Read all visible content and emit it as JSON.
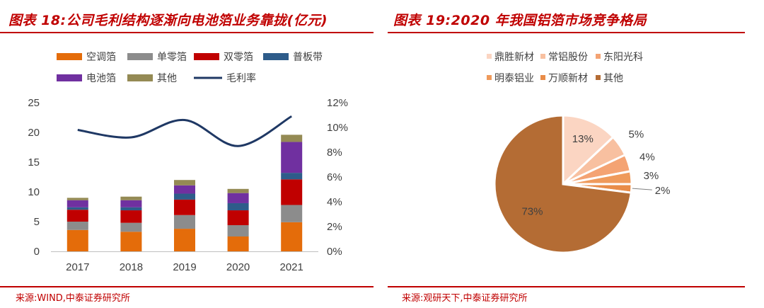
{
  "left": {
    "title": "图表 18:公司毛利结构逐渐向电池箔业务靠拢(亿元)",
    "source": "来源:WIND,中泰证券研究所"
  },
  "right": {
    "title": "图表 19:2020 年我国铝箔市场竞争格局",
    "source": "来源:观研天下,中泰证券研究所"
  },
  "chart_data": [
    {
      "type": "bar",
      "stacked": true,
      "title": "公司毛利结构逐渐向电池箔业务靠拢(亿元)",
      "categories": [
        "2017",
        "2018",
        "2019",
        "2020",
        "2021"
      ],
      "ylim": [
        0,
        25
      ],
      "yticks": [
        "0",
        "5",
        "10",
        "15",
        "20",
        "25"
      ],
      "y2lim": [
        0,
        12
      ],
      "y2ticks": [
        "0%",
        "2%",
        "4%",
        "6%",
        "8%",
        "10%",
        "12%"
      ],
      "series": [
        {
          "name": "空调箔",
          "color": "#e46c0a",
          "values": [
            3.6,
            3.3,
            3.8,
            2.5,
            4.9
          ]
        },
        {
          "name": "单零箔",
          "color": "#8c8c8c",
          "values": [
            1.4,
            1.5,
            2.3,
            1.9,
            2.9
          ]
        },
        {
          "name": "双零箔",
          "color": "#c00000",
          "values": [
            2.0,
            2.1,
            2.6,
            2.5,
            4.3
          ]
        },
        {
          "name": "普板带",
          "color": "#2e5c8a",
          "values": [
            0.4,
            0.5,
            1.0,
            1.2,
            1.1
          ]
        },
        {
          "name": "电池箔",
          "color": "#7030a0",
          "values": [
            1.2,
            1.2,
            1.4,
            1.7,
            5.2
          ]
        },
        {
          "name": "其他",
          "color": "#948a54",
          "values": [
            0.4,
            0.6,
            0.9,
            0.7,
            1.2
          ]
        }
      ],
      "line_series": {
        "name": "毛利率",
        "color": "#1f3864",
        "axis": "right",
        "values": [
          9.8,
          9.2,
          10.6,
          8.5,
          10.9
        ]
      }
    },
    {
      "type": "pie",
      "title": "2020 年我国铝箔市场竞争格局",
      "labels": [
        "鼎胜新材",
        "常铝股份",
        "东阳光科",
        "明泰铝业",
        "万顺新材",
        "其他"
      ],
      "values": [
        13,
        5,
        4,
        3,
        2,
        73
      ],
      "value_labels": [
        "13%",
        "5%",
        "4%",
        "3%",
        "2%",
        "73%"
      ],
      "colors": [
        "#fbd5c2",
        "#f8c0a0",
        "#f4a373",
        "#ef9a5b",
        "#e98c48",
        "#b46c34"
      ]
    }
  ]
}
